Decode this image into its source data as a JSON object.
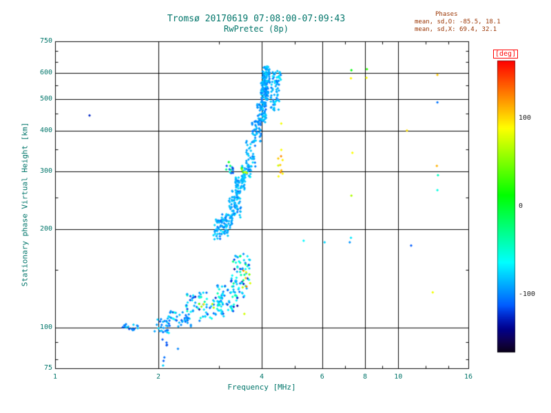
{
  "title": {
    "line1": "Tromsø 20170619 07:08:00-07:09:43",
    "line2": "RwPretec (8p)"
  },
  "stats": {
    "header": "Phases",
    "line_o": "mean, sd,O: -85.5, 18.1",
    "line_x": "mean, sd,X: 69.4, 32.1"
  },
  "axes": {
    "xlabel": "Frequency [MHz]",
    "ylabel": "Stationary phase Virtual Height [km]",
    "x_ticks": [
      1,
      2,
      4,
      6,
      8,
      10,
      16
    ],
    "x_grid": [
      2,
      4,
      6,
      8,
      10
    ],
    "x_minor": [
      3,
      5,
      7,
      9,
      12,
      14
    ],
    "y_ticks": [
      75,
      100,
      200,
      300,
      400,
      500,
      600,
      750
    ],
    "y_grid": [
      100,
      200,
      300,
      400,
      500,
      600
    ],
    "y_minor": [
      80,
      90,
      150,
      250,
      350,
      450,
      550,
      650,
      700
    ]
  },
  "colorbar": {
    "label": "[deg]",
    "ticks": [
      100,
      0,
      -100
    ],
    "min": -165,
    "max": 165
  },
  "colors": {
    "axis_text": "#00756a",
    "stats_text": "#993300",
    "colorbar_label": "#ff0000",
    "grid": "#000000",
    "background": "#ffffff"
  },
  "chart_data": {
    "type": "scatter",
    "title": "Tromsø 20170619 07:08:00-07:09:43 RwPretec (8p)",
    "xlabel": "Frequency [MHz]",
    "ylabel": "Stationary phase Virtual Height [km]",
    "xscale": "log",
    "yscale": "log",
    "xlim": [
      1,
      16
    ],
    "ylim": [
      75,
      750
    ],
    "grid": true,
    "color_variable": "phase [deg]",
    "color_range": [
      -165,
      165
    ],
    "phase_stats": {
      "mean_O": -85.5,
      "sd_O": 18.1,
      "mean_X": 69.4,
      "sd_X": 32.1
    },
    "clusters": [
      {
        "x": [
          1.55,
          1.75
        ],
        "h": [
          98,
          103
        ],
        "n": 16,
        "phase": -95,
        "sd": 20
      },
      {
        "x": [
          1.95,
          2.15
        ],
        "h": [
          96,
          107
        ],
        "n": 24,
        "phase": -95,
        "sd": 25
      },
      {
        "x": [
          2.02,
          2.12
        ],
        "h": [
          76,
          96
        ],
        "n": 6,
        "phase": -105,
        "sd": 30
      },
      {
        "x": [
          2.12,
          2.5
        ],
        "h": [
          100,
          112
        ],
        "n": 40,
        "phase": -92,
        "sd": 25
      },
      {
        "x": [
          2.4,
          3.1
        ],
        "h": [
          104,
          128
        ],
        "n": 80,
        "phase": -85,
        "sd": 35
      },
      {
        "x": [
          2.95,
          3.4
        ],
        "h": [
          112,
          140
        ],
        "n": 60,
        "phase": -80,
        "sd": 40
      },
      {
        "x": [
          3.25,
          3.7
        ],
        "h": [
          122,
          168
        ],
        "n": 55,
        "phase": -75,
        "sd": 45
      },
      {
        "x": [
          3.45,
          3.72
        ],
        "h": [
          128,
          150
        ],
        "n": 7,
        "phase": 85,
        "sd": 35
      },
      {
        "x": [
          2.6,
          2.9
        ],
        "h": [
          112,
          122
        ],
        "n": 5,
        "phase": 60,
        "sd": 40
      },
      {
        "x": [
          2.9,
          3.2
        ],
        "h": [
          190,
          214
        ],
        "n": 50,
        "phase": -90,
        "sd": 15
      },
      {
        "x": [
          2.88,
          3.06
        ],
        "h": [
          186,
          200
        ],
        "n": 10,
        "phase": -92,
        "sd": 15
      },
      {
        "x": [
          3.05,
          3.3
        ],
        "h": [
          196,
          222
        ],
        "n": 30,
        "phase": -89,
        "sd": 15
      },
      {
        "x": [
          3.2,
          3.48
        ],
        "h": [
          215,
          262
        ],
        "n": 65,
        "phase": -86,
        "sd": 15
      },
      {
        "x": [
          3.35,
          3.58
        ],
        "h": [
          255,
          290
        ],
        "n": 50,
        "phase": -86,
        "sd": 15
      },
      {
        "x": [
          3.5,
          3.72
        ],
        "h": [
          285,
          312
        ],
        "n": 35,
        "phase": -85,
        "sd": 15
      },
      {
        "x": [
          3.48,
          3.62
        ],
        "h": [
          296,
          310
        ],
        "n": 7,
        "phase": 55,
        "sd": 30
      },
      {
        "x": [
          3.15,
          3.3
        ],
        "h": [
          295,
          325
        ],
        "n": 12,
        "phase": -65,
        "sd": 55
      },
      {
        "x": [
          3.6,
          3.85
        ],
        "h": [
          310,
          375
        ],
        "n": 35,
        "phase": -88,
        "sd": 14
      },
      {
        "x": [
          3.75,
          3.98
        ],
        "h": [
          370,
          430
        ],
        "n": 40,
        "phase": -90,
        "sd": 14
      },
      {
        "x": [
          3.88,
          4.12
        ],
        "h": [
          420,
          490
        ],
        "n": 60,
        "phase": -90,
        "sd": 15
      },
      {
        "x": [
          3.98,
          4.18
        ],
        "h": [
          480,
          565
        ],
        "n": 85,
        "phase": -92,
        "sd": 14
      },
      {
        "x": [
          4.02,
          4.22
        ],
        "h": [
          555,
          628
        ],
        "n": 70,
        "phase": -90,
        "sd": 16
      },
      {
        "x": [
          4.25,
          4.5
        ],
        "h": [
          455,
          565
        ],
        "n": 45,
        "phase": -88,
        "sd": 16
      },
      {
        "x": [
          4.3,
          4.55
        ],
        "h": [
          565,
          615
        ],
        "n": 22,
        "phase": -86,
        "sd": 18
      },
      {
        "x": [
          4.44,
          4.62
        ],
        "h": [
          288,
          352
        ],
        "n": 10,
        "phase": 95,
        "sd": 30
      }
    ],
    "points": [
      [
        1.26,
        445,
        -125
      ],
      [
        2.28,
        86,
        -100
      ],
      [
        2.07,
        79,
        -110
      ],
      [
        3.56,
        110,
        75
      ],
      [
        4.56,
        420,
        85
      ],
      [
        5.3,
        184,
        -65
      ],
      [
        6.1,
        182,
        -75
      ],
      [
        7.3,
        612,
        10
      ],
      [
        7.28,
        578,
        92
      ],
      [
        7.35,
        342,
        88
      ],
      [
        7.3,
        253,
        65
      ],
      [
        7.28,
        188,
        -70
      ],
      [
        7.22,
        182,
        -95
      ],
      [
        8.1,
        616,
        25
      ],
      [
        8.08,
        580,
        88
      ],
      [
        10.6,
        400,
        98
      ],
      [
        10.9,
        178,
        -112
      ],
      [
        12.6,
        128,
        85
      ],
      [
        13.0,
        592,
        105
      ],
      [
        13.0,
        488,
        -105
      ],
      [
        12.95,
        312,
        112
      ],
      [
        13.05,
        292,
        -45
      ],
      [
        13.0,
        263,
        -55
      ]
    ]
  }
}
